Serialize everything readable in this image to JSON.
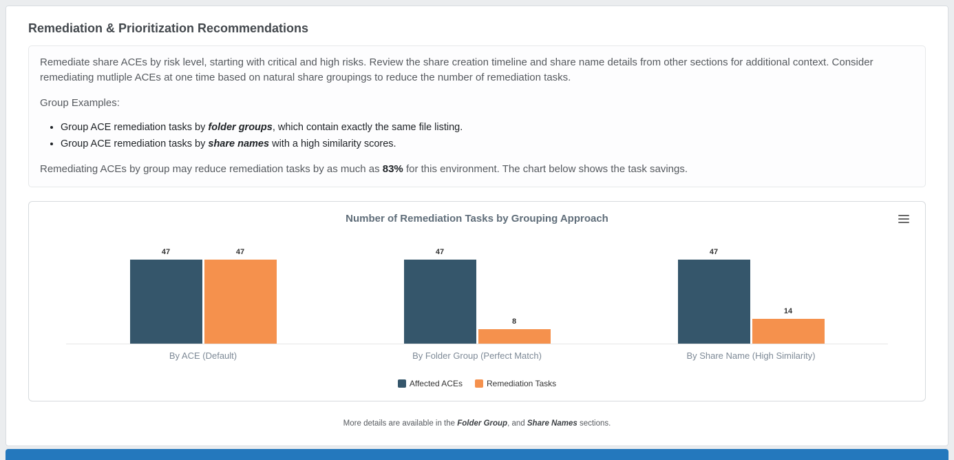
{
  "page": {
    "title": "Remediation & Prioritization Recommendations",
    "intro": "Remediate share ACEs by risk level, starting with critical and high risks. Review the share creation timeline and share name details from other sections for additional context. Consider remediating mutliple ACEs at one time based on natural share groupings to reduce the number of remediation tasks.",
    "group_examples_label": "Group Examples:",
    "bullets": [
      {
        "prefix": "Group ACE remediation tasks by ",
        "emphasis": "folder groups",
        "suffix": ", which contain exactly the same file listing."
      },
      {
        "prefix": "Group ACE remediation tasks by ",
        "emphasis": "share names",
        "suffix": " with a high similarity scores."
      }
    ],
    "summary": {
      "prefix": "Remediating ACEs by group may reduce remediation tasks by as much as ",
      "bold": "83%",
      "suffix": " for this environment. The chart below shows the task savings."
    },
    "footer": {
      "prefix": "More details are available in the ",
      "link1": "Folder Group",
      "mid": ", and ",
      "link2": "Share Names",
      "suffix": " sections."
    }
  },
  "chart_data": {
    "type": "bar",
    "title": "Number of Remediation Tasks by Grouping Approach",
    "categories": [
      "By ACE (Default)",
      "By Folder Group (Perfect Match)",
      "By Share Name (High Similarity)"
    ],
    "series": [
      {
        "name": "Affected ACEs",
        "color": "#35566b",
        "values": [
          47,
          47,
          47
        ]
      },
      {
        "name": "Remediation Tasks",
        "color": "#f5914d",
        "values": [
          47,
          8,
          14
        ]
      }
    ],
    "ylim": [
      0,
      50
    ],
    "xlabel": "",
    "ylabel": "",
    "grid": false,
    "legend_position": "bottom",
    "data_labels": true
  },
  "icons": {
    "chart_menu": "hamburger-menu-icon"
  },
  "colors": {
    "bar_affected_aces": "#35566b",
    "bar_remediation_tasks": "#f5914d",
    "next_section_bar": "#2478bd"
  }
}
